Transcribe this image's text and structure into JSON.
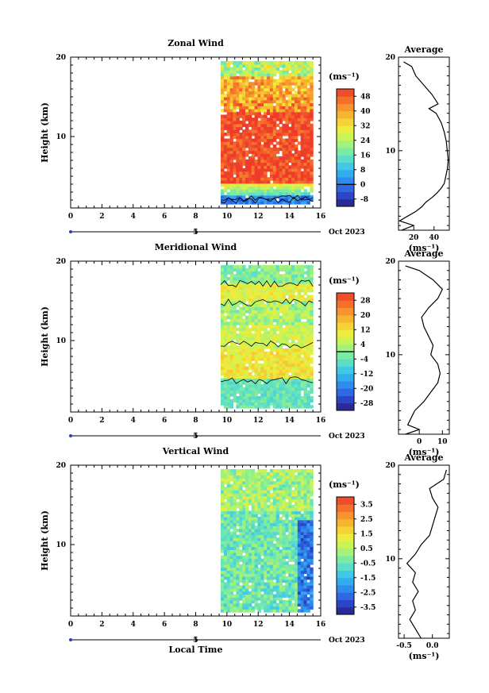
{
  "chart_data": [
    {
      "type": "heatmap",
      "title": "Zonal Wind",
      "ylabel": "Height (km)",
      "xlim": [
        0,
        16
      ],
      "ylim": [
        1,
        20
      ],
      "x_ticks": [
        "0",
        "2",
        "4",
        "6",
        "8",
        "10",
        "12",
        "14",
        "16"
      ],
      "y_ticks": [
        "10",
        "20"
      ],
      "data_x_range": [
        9.6,
        15.5
      ],
      "colorbar": {
        "unit": "(ms⁻¹)",
        "ticks": [
          "48",
          "40",
          "32",
          "24",
          "16",
          "8",
          "0",
          "-8"
        ],
        "range": [
          -12,
          52
        ],
        "contour_level": 0
      },
      "date_label": "Oct 2023",
      "day_tick": "5",
      "profile": {
        "title": "Average",
        "y_ticks": [
          "10",
          "20"
        ],
        "x_ticks": [
          "20",
          "40"
        ],
        "xlim": [
          5,
          55
        ],
        "xlabel": "(ms⁻¹)",
        "heights": [
          1.5,
          2,
          2.5,
          3,
          3.5,
          4,
          4.5,
          5,
          5.5,
          6,
          6.5,
          7,
          8,
          9,
          10,
          11,
          12,
          13,
          14,
          14.5,
          15,
          16,
          17,
          18,
          19,
          19.5
        ],
        "values": [
          8,
          20,
          6,
          14,
          22,
          28,
          32,
          38,
          43,
          47,
          50,
          51,
          53,
          54,
          53,
          52,
          50,
          47,
          42,
          35,
          44,
          38,
          30,
          22,
          18,
          10
        ]
      }
    },
    {
      "type": "heatmap",
      "title": "Meridional Wind",
      "ylabel": "Height (km)",
      "xlim": [
        0,
        16
      ],
      "ylim": [
        1,
        20
      ],
      "x_ticks": [
        "0",
        "2",
        "4",
        "6",
        "8",
        "10",
        "12",
        "14",
        "16"
      ],
      "y_ticks": [
        "10",
        "20"
      ],
      "data_x_range": [
        9.6,
        15.5
      ],
      "colorbar": {
        "unit": "(ms⁻¹)",
        "ticks": [
          "28",
          "20",
          "12",
          "4",
          "-4",
          "-12",
          "-20",
          "-28"
        ],
        "range": [
          -32,
          32
        ],
        "contour_level": 0
      },
      "date_label": "Oct 2023",
      "day_tick": "5",
      "profile": {
        "title": "Average",
        "y_ticks": [
          "10",
          "20"
        ],
        "x_ticks": [
          "0",
          "10"
        ],
        "xlim": [
          -9,
          13
        ],
        "xlabel": "(ms⁻¹)",
        "heights": [
          1.5,
          2,
          2.5,
          3,
          4,
          5,
          6,
          7,
          8,
          9,
          10,
          11,
          12,
          13,
          14,
          15,
          16,
          17,
          18,
          19,
          19.5
        ],
        "values": [
          -6,
          0,
          -5,
          -4,
          -2,
          2,
          5,
          8,
          9,
          8,
          5,
          6,
          4,
          2,
          1,
          4,
          8,
          10,
          6,
          0,
          -6
        ]
      }
    },
    {
      "type": "heatmap",
      "title": "Vertical Wind",
      "ylabel": "Height (km)",
      "xlabel": "Local Time",
      "xlim": [
        0,
        16
      ],
      "ylim": [
        1,
        20
      ],
      "x_ticks": [
        "0",
        "2",
        "4",
        "6",
        "8",
        "10",
        "12",
        "14",
        "16"
      ],
      "y_ticks": [
        "10",
        "20"
      ],
      "data_x_range": [
        9.6,
        15.5
      ],
      "colorbar": {
        "unit": "(ms⁻¹)",
        "ticks": [
          "3.5",
          "2.5",
          "1.5",
          "0.5",
          "-0.5",
          "-1.5",
          "-2.5",
          "-3.5"
        ],
        "range": [
          -4,
          4
        ]
      },
      "date_label": "Oct 2023",
      "day_tick": "5",
      "profile": {
        "title": "Average",
        "y_ticks": [
          "10",
          "20"
        ],
        "x_ticks": [
          "-0.5",
          "0.0"
        ],
        "xlim": [
          -0.6,
          0.3
        ],
        "xlabel": "(ms⁻¹)",
        "heights": [
          1.5,
          2.5,
          3.5,
          4.5,
          5.5,
          6.5,
          7.5,
          8.5,
          9.5,
          10.5,
          11.5,
          12.5,
          13.5,
          14.5,
          15.5,
          16.5,
          17.5,
          18.5,
          19.5
        ],
        "values": [
          -0.2,
          -0.3,
          -0.4,
          -0.3,
          -0.35,
          -0.25,
          -0.35,
          -0.3,
          -0.45,
          -0.3,
          -0.2,
          -0.05,
          0.0,
          0.05,
          0.1,
          0.0,
          -0.05,
          0.2,
          0.25
        ]
      }
    }
  ]
}
